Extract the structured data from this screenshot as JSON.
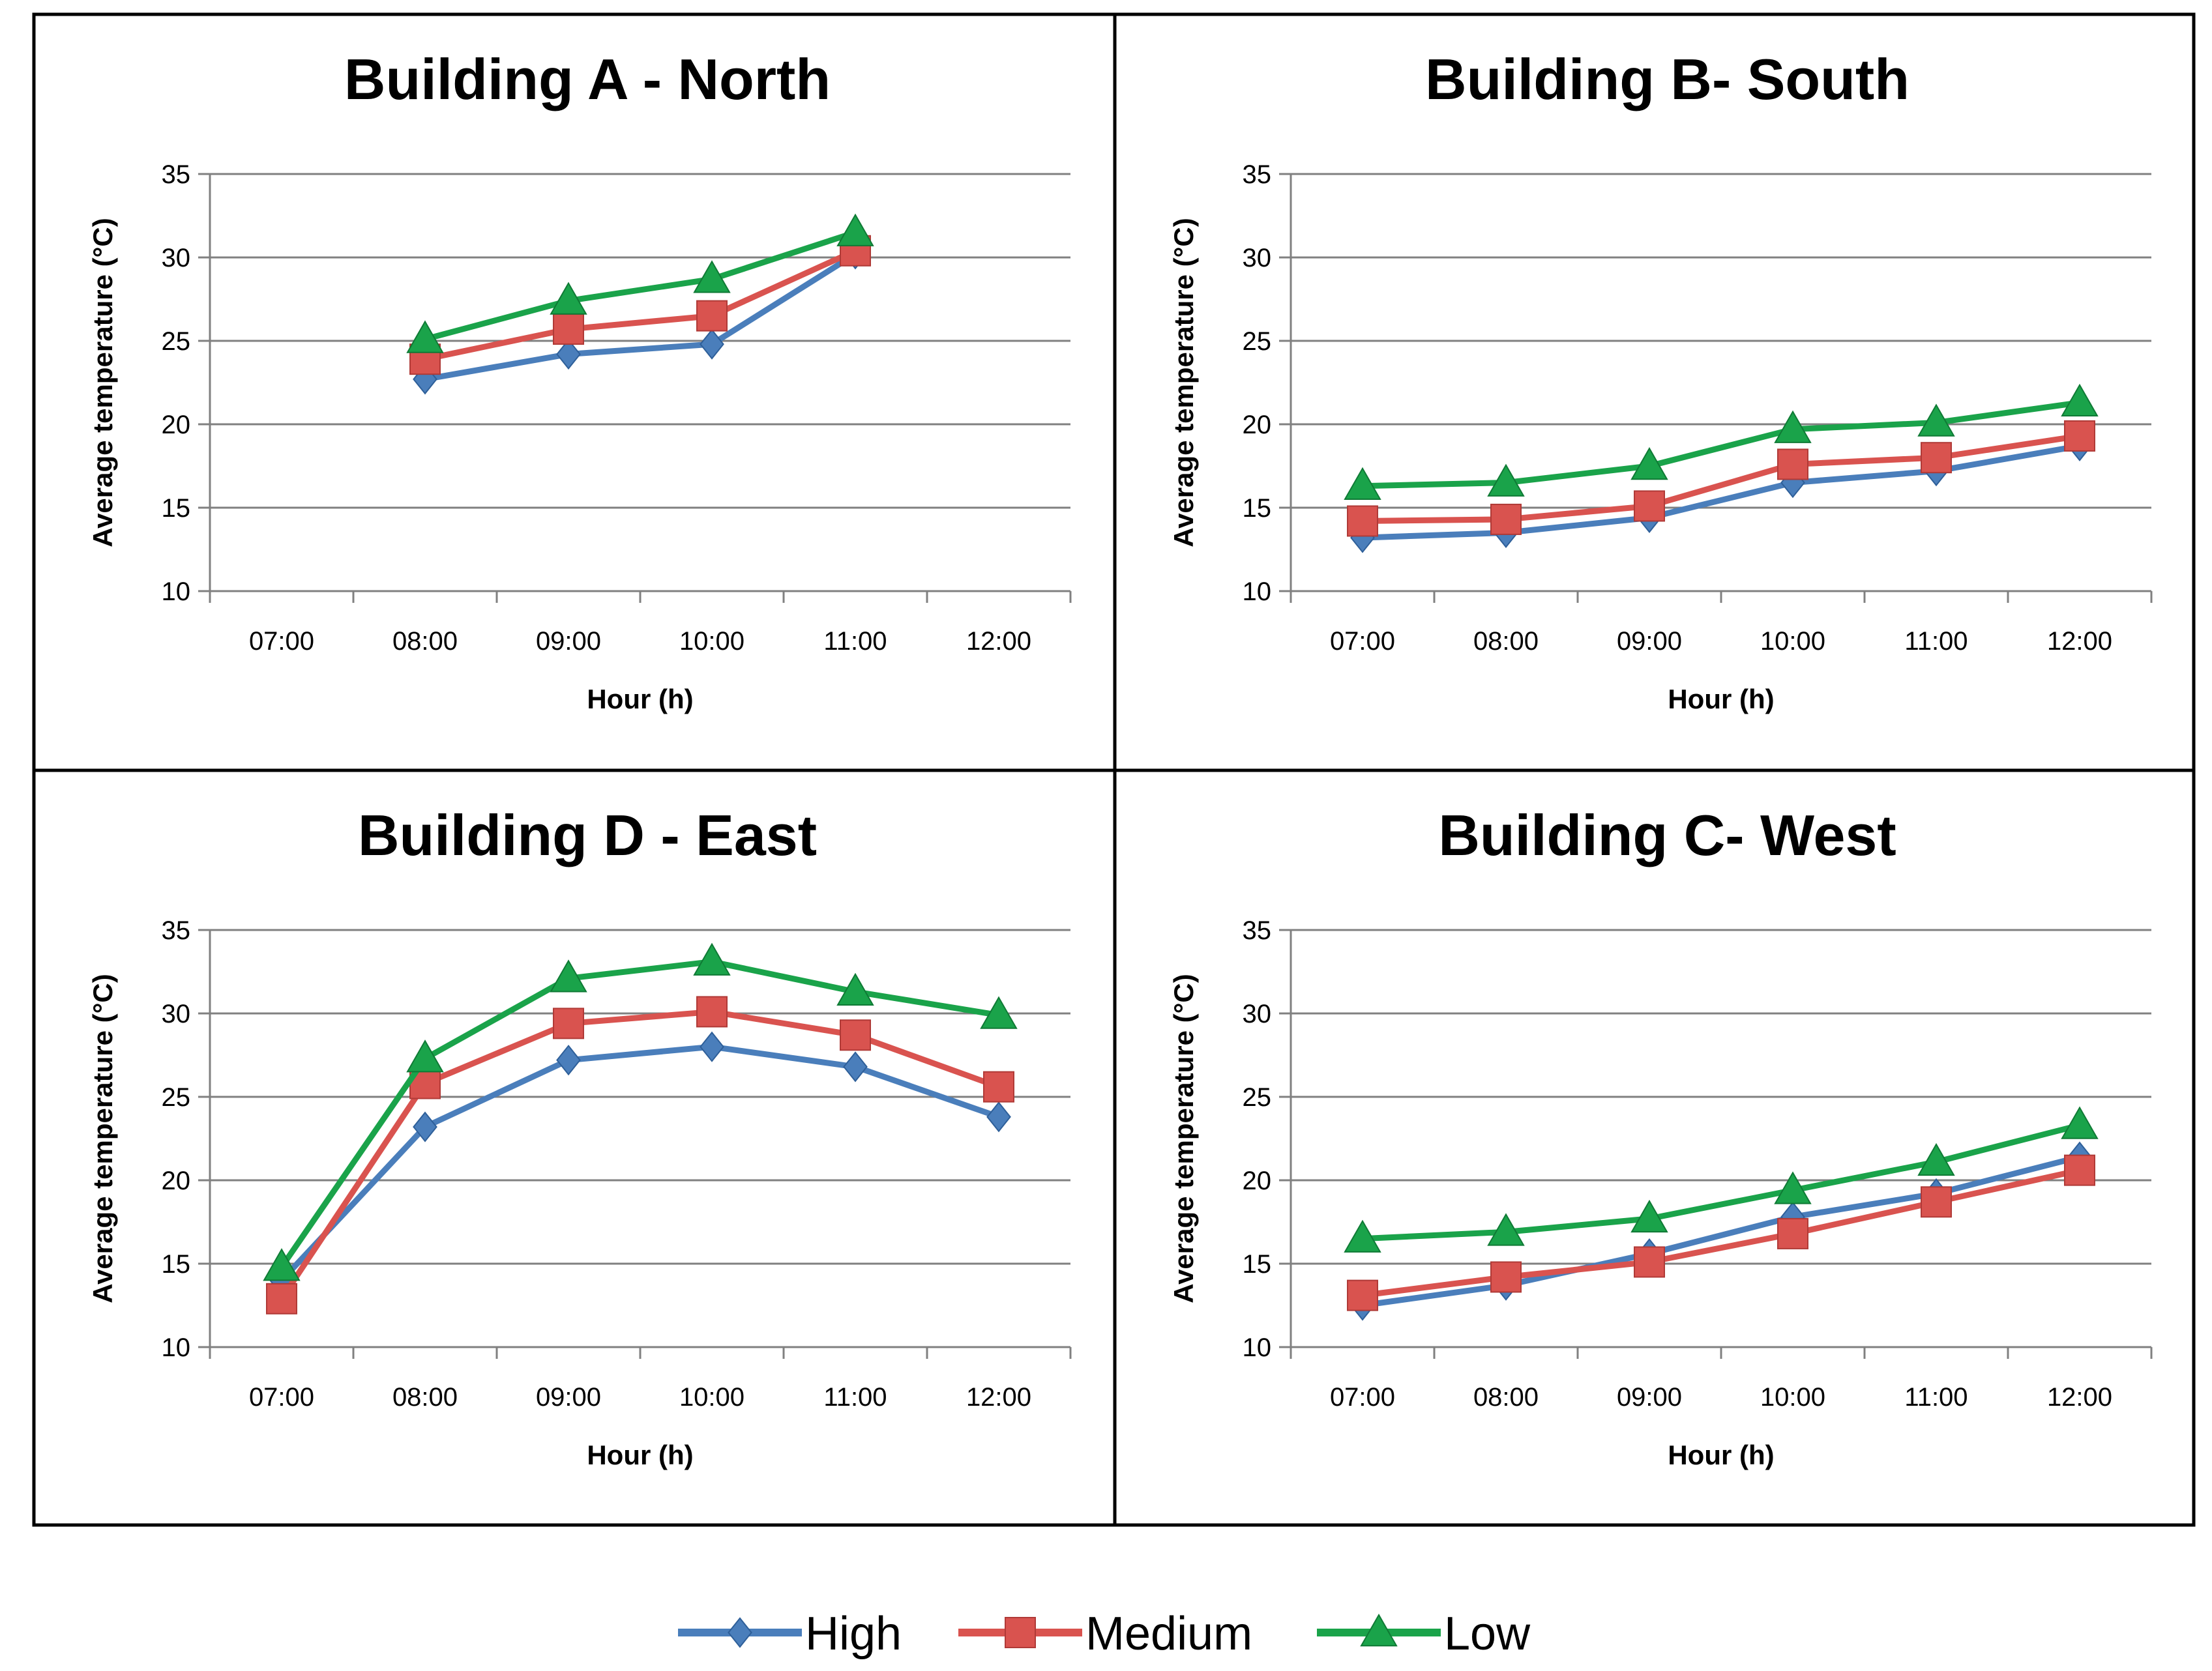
{
  "legend": {
    "items": [
      {
        "label": "High",
        "color": "#4a7ebb",
        "marker": "diamond"
      },
      {
        "label": "Medium",
        "color": "#d9534f",
        "marker": "square"
      },
      {
        "label": "Low",
        "color": "#1aa34a",
        "marker": "triangle"
      }
    ]
  },
  "chart_data": [
    {
      "type": "line",
      "title": "Building A - North",
      "xlabel": "Hour (h)",
      "ylabel": "Average  temperature  (°C)",
      "categories": [
        "07:00",
        "08:00",
        "09:00",
        "10:00",
        "11:00",
        "12:00"
      ],
      "ylim": [
        10,
        35
      ],
      "yticks": [
        10,
        15,
        20,
        25,
        30,
        35
      ],
      "grid": true,
      "series": [
        {
          "name": "High",
          "values": [
            null,
            22.7,
            24.2,
            24.8,
            30.2,
            null
          ]
        },
        {
          "name": "Medium",
          "values": [
            null,
            23.9,
            25.7,
            26.5,
            30.4,
            null
          ]
        },
        {
          "name": "Low",
          "values": [
            null,
            25.1,
            27.4,
            28.7,
            31.5,
            null
          ]
        }
      ]
    },
    {
      "type": "line",
      "title": "Building B- South",
      "xlabel": "Hour (h)",
      "ylabel": "Average  temperature  (°C)",
      "categories": [
        "07:00",
        "08:00",
        "09:00",
        "10:00",
        "11:00",
        "12:00"
      ],
      "ylim": [
        10,
        35
      ],
      "yticks": [
        10,
        15,
        20,
        25,
        30,
        35
      ],
      "grid": true,
      "series": [
        {
          "name": "High",
          "values": [
            13.2,
            13.5,
            14.4,
            16.5,
            17.2,
            18.7
          ]
        },
        {
          "name": "Medium",
          "values": [
            14.2,
            14.3,
            15.1,
            17.6,
            18.0,
            19.3
          ]
        },
        {
          "name": "Low",
          "values": [
            16.3,
            16.5,
            17.5,
            19.7,
            20.1,
            21.3
          ]
        }
      ]
    },
    {
      "type": "line",
      "title": "Building D - East",
      "xlabel": "Hour (h)",
      "ylabel": "Average  temperature  (°C)",
      "categories": [
        "07:00",
        "08:00",
        "09:00",
        "10:00",
        "11:00",
        "12:00"
      ],
      "ylim": [
        10,
        35
      ],
      "yticks": [
        10,
        15,
        20,
        25,
        30,
        35
      ],
      "grid": true,
      "series": [
        {
          "name": "High",
          "values": [
            14.0,
            23.2,
            27.2,
            28.0,
            26.8,
            23.8
          ]
        },
        {
          "name": "Medium",
          "values": [
            12.9,
            25.8,
            29.4,
            30.1,
            28.7,
            25.6
          ]
        },
        {
          "name": "Low",
          "values": [
            14.8,
            27.3,
            32.1,
            33.1,
            31.3,
            29.9
          ]
        }
      ]
    },
    {
      "type": "line",
      "title": "Building C- West",
      "xlabel": "Hour (h)",
      "ylabel": "Average  temperature  (°C)",
      "categories": [
        "07:00",
        "08:00",
        "09:00",
        "10:00",
        "11:00",
        "12:00"
      ],
      "ylim": [
        10,
        35
      ],
      "yticks": [
        10,
        15,
        20,
        25,
        30,
        35
      ],
      "grid": true,
      "series": [
        {
          "name": "High",
          "values": [
            12.5,
            13.7,
            15.6,
            17.8,
            19.2,
            21.4
          ]
        },
        {
          "name": "Medium",
          "values": [
            13.1,
            14.2,
            15.1,
            16.8,
            18.7,
            20.6
          ]
        },
        {
          "name": "Low",
          "values": [
            16.5,
            16.9,
            17.7,
            19.4,
            21.1,
            23.3
          ]
        }
      ]
    }
  ]
}
